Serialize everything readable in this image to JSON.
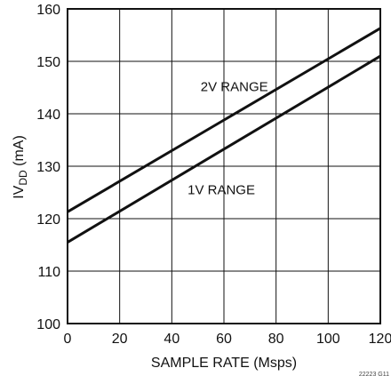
{
  "chart_data": {
    "type": "line",
    "xlabel": "SAMPLE RATE (Msps)",
    "ylabel": {
      "prefix": "IV",
      "sub": "DD",
      "suffix": " (mA)"
    },
    "xlim": [
      0,
      120
    ],
    "ylim": [
      100,
      160
    ],
    "xticks": [
      0,
      20,
      40,
      60,
      80,
      100,
      120
    ],
    "yticks": [
      100,
      110,
      120,
      130,
      140,
      150,
      160
    ],
    "grid": true,
    "series": [
      {
        "name": "2V RANGE",
        "x": [
          0,
          120
        ],
        "y": [
          121.3,
          156.3
        ]
      },
      {
        "name": "1V RANGE",
        "x": [
          0,
          120
        ],
        "y": [
          115.5,
          151.0
        ]
      }
    ],
    "annotations": [
      {
        "text": "2V RANGE",
        "x": 64,
        "y": 145.3
      },
      {
        "text": "1V RANGE",
        "x": 59,
        "y": 125.7
      }
    ],
    "figure_id": "22223 G11"
  }
}
